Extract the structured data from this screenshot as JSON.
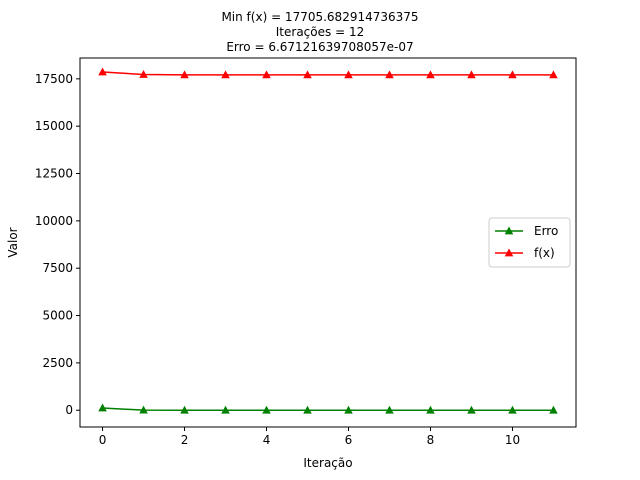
{
  "chart_data": {
    "type": "line",
    "title_lines": [
      "Min f(x) = 17705.682914736375",
      "Iterações = 12",
      "Erro = 6.67121639708057e-07"
    ],
    "xlabel": "Iteração",
    "ylabel": "Valor",
    "xlim": [
      -0.55,
      11.55
    ],
    "ylim": [
      -885,
      18600
    ],
    "xticks": [
      0,
      2,
      4,
      6,
      8,
      10
    ],
    "yticks": [
      0,
      2500,
      5000,
      7500,
      10000,
      12500,
      15000,
      17500
    ],
    "x": [
      0,
      1,
      2,
      3,
      4,
      5,
      6,
      7,
      8,
      9,
      10,
      11
    ],
    "series": [
      {
        "name": "Erro",
        "color": "#008000",
        "marker": "triangle-up",
        "values": [
          120,
          5,
          1,
          0.3,
          0.1,
          0.02,
          0.005,
          0.001,
          0.0002,
          5e-05,
          1e-05,
          7e-07
        ]
      },
      {
        "name": "f(x)",
        "color": "#ff0000",
        "marker": "triangle-up",
        "values": [
          17860,
          17730,
          17710,
          17706,
          17705.8,
          17705.7,
          17705.69,
          17705.685,
          17705.683,
          17705.683,
          17705.683,
          17705.683
        ]
      }
    ],
    "legend_position": "center-right",
    "grid": false
  }
}
